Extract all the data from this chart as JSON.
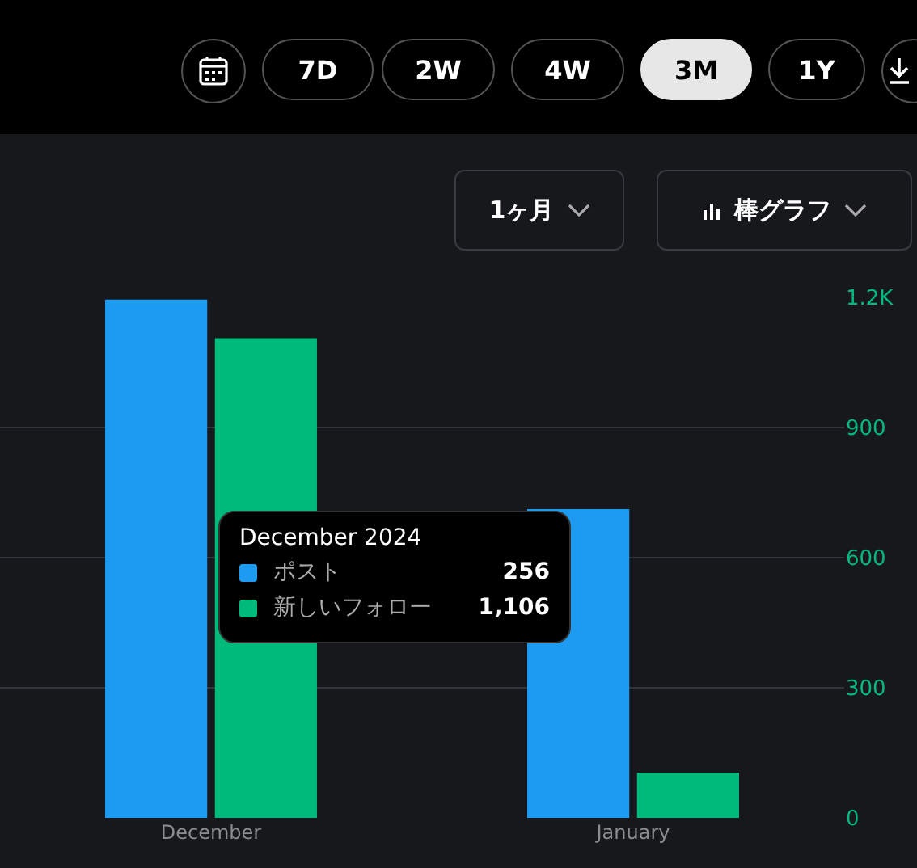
{
  "chart_data": {
    "type": "bar",
    "categories": [
      "December",
      "January"
    ],
    "series": [
      {
        "name": "ポスト",
        "color": "#1d9bf0",
        "values": [
          1195,
          712
        ]
      },
      {
        "name": "新しいフォロー",
        "color": "#00ba7c",
        "values": [
          1106,
          104
        ]
      }
    ],
    "legend": "center",
    "ylim": [
      0,
      1200
    ],
    "yticks": [
      0,
      300,
      600,
      900,
      {
        "value": 1200,
        "label": "1.2K"
      }
    ],
    "grid": "y",
    "annotations": [
      "7D",
      "2W",
      "4W",
      "3M",
      "1Y",
      "1ヶ月",
      "棒グラフ",
      "December 2024",
      "256",
      "1,106"
    ]
  }
}
